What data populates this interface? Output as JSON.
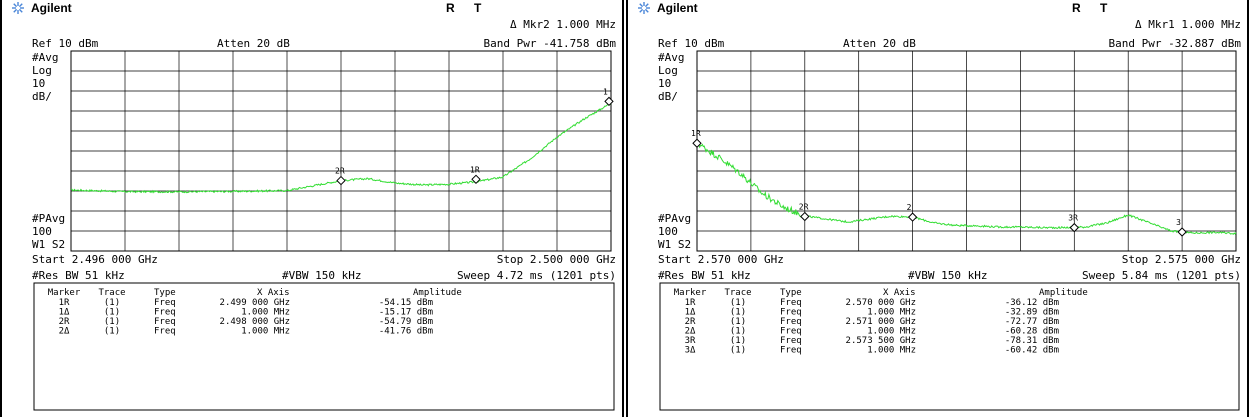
{
  "chart_data": [
    {
      "type": "line",
      "brand": "Agilent",
      "status_r": "R",
      "status_t": "T",
      "marker_readout": "Δ Mkr2  1.000 MHz",
      "ref_level": "Ref 10 dBm",
      "attenuation": "Atten 20 dB",
      "band_power": "Band Pwr  -41.758 dBm",
      "left_labels": [
        "#Avg",
        "Log",
        "10",
        "dB/"
      ],
      "bottom_left_labels": [
        "#PAvg",
        "100",
        "W1  S2"
      ],
      "start": "Start 2.496 000 GHz",
      "stop": "Stop 2.500 000 GHz",
      "res_bw": "#Res BW 51 kHz",
      "vbw": "#VBW 150 kHz",
      "sweep": "Sweep 4.72 ms (1201 pts)",
      "x_range_ghz": [
        2.496,
        2.5
      ],
      "y_range_dbm": [
        -90,
        10
      ],
      "grid": true,
      "series": [
        {
          "x": [
            2.496,
            2.4964,
            2.4968,
            2.4972,
            2.4976,
            2.498,
            2.4982,
            2.4984,
            2.4986,
            2.4988,
            2.499,
            2.4992,
            2.4994,
            2.4996,
            2.4998,
            2.5
          ],
          "y": [
            -59.5,
            -60.3,
            -60.4,
            -60.2,
            -59.8,
            -54.8,
            -53.8,
            -56,
            -57,
            -56.6,
            -55.4,
            -53,
            -44,
            -33,
            -24,
            -16
          ]
        }
      ],
      "markers": [
        {
          "label": "2R",
          "x": 2.498,
          "y": -54.79
        },
        {
          "label": "1R",
          "x": 2.499,
          "y": -54.15
        },
        {
          "label": "1",
          "x": 2.5,
          "y": -15.17
        }
      ],
      "table_headers": [
        "Marker",
        "Trace",
        "Type",
        "X Axis",
        "Amplitude"
      ],
      "table_rows": [
        [
          "1R",
          "(1)",
          "Freq",
          "2.499 000 GHz",
          "-54.15 dBm"
        ],
        [
          "1Δ",
          "(1)",
          "Freq",
          "1.000 MHz",
          "-15.17 dBm"
        ],
        [
          "2R",
          "(1)",
          "Freq",
          "2.498 000 GHz",
          "-54.79 dBm"
        ],
        [
          "2Δ",
          "(1)",
          "Freq",
          "1.000 MHz",
          "-41.76 dBm"
        ]
      ]
    },
    {
      "type": "line",
      "brand": "Agilent",
      "status_r": "R",
      "status_t": "T",
      "marker_readout": "Δ Mkr1  1.000 MHz",
      "ref_level": "Ref 10 dBm",
      "attenuation": "Atten 20 dB",
      "band_power": "Band Pwr  -32.887 dBm",
      "left_labels": [
        "#Avg",
        "Log",
        "10",
        "dB/"
      ],
      "bottom_left_labels": [
        "#PAvg",
        "100",
        "W1  S2"
      ],
      "start": "Start 2.570 000 GHz",
      "stop": "Stop 2.575 000 GHz",
      "res_bw": "#Res BW 51 kHz",
      "vbw": "#VBW 150 kHz",
      "sweep": "Sweep 5.84 ms (1201 pts)",
      "x_range_ghz": [
        2.57,
        2.575
      ],
      "y_range_dbm": [
        -90,
        10
      ],
      "grid": true,
      "series": [
        {
          "x": [
            2.57,
            2.5702,
            2.5704,
            2.5706,
            2.5708,
            2.571,
            2.5712,
            2.5714,
            2.5716,
            2.5718,
            2.572,
            2.5722,
            2.5724,
            2.5726,
            2.5728,
            2.573,
            2.5732,
            2.5734,
            2.5736,
            2.5738,
            2.574,
            2.5742,
            2.5744,
            2.5746,
            2.5748,
            2.575
          ],
          "y": [
            -36,
            -43,
            -51,
            -61,
            -68,
            -72.5,
            -74,
            -75.5,
            -74,
            -72.6,
            -73,
            -76,
            -77.2,
            -77.4,
            -78,
            -78,
            -78.3,
            -78.3,
            -78,
            -76,
            -72,
            -76,
            -80,
            -81,
            -80.7,
            -81.2
          ]
        }
      ],
      "markers": [
        {
          "label": "1R",
          "x": 2.57,
          "y": -36.12
        },
        {
          "label": "2R",
          "x": 2.571,
          "y": -72.77
        },
        {
          "label": "2",
          "x": 2.572,
          "y": -73.05
        },
        {
          "label": "3R",
          "x": 2.5735,
          "y": -78.31
        },
        {
          "label": "3",
          "x": 2.5745,
          "y": -80.5
        }
      ],
      "table_headers": [
        "Marker",
        "Trace",
        "Type",
        "X Axis",
        "Amplitude"
      ],
      "table_rows": [
        [
          "1R",
          "(1)",
          "Freq",
          "2.570 000 GHz",
          "-36.12 dBm"
        ],
        [
          "1Δ",
          "(1)",
          "Freq",
          "1.000 MHz",
          "-32.89 dBm"
        ],
        [
          "2R",
          "(1)",
          "Freq",
          "2.571 000 GHz",
          "-72.77 dBm"
        ],
        [
          "2Δ",
          "(1)",
          "Freq",
          "1.000 MHz",
          "-60.28 dBm"
        ],
        [
          "3R",
          "(1)",
          "Freq",
          "2.573 500 GHz",
          "-78.31 dBm"
        ],
        [
          "3Δ",
          "(1)",
          "Freq",
          "1.000 MHz",
          "-60.42 dBm"
        ]
      ]
    }
  ],
  "colors": {
    "trace": "#33dd33",
    "grid": "#000000",
    "logo": "#4a86d8"
  },
  "icons": {
    "logo": "agilent-spark-icon",
    "marker": "diamond-marker-icon"
  }
}
